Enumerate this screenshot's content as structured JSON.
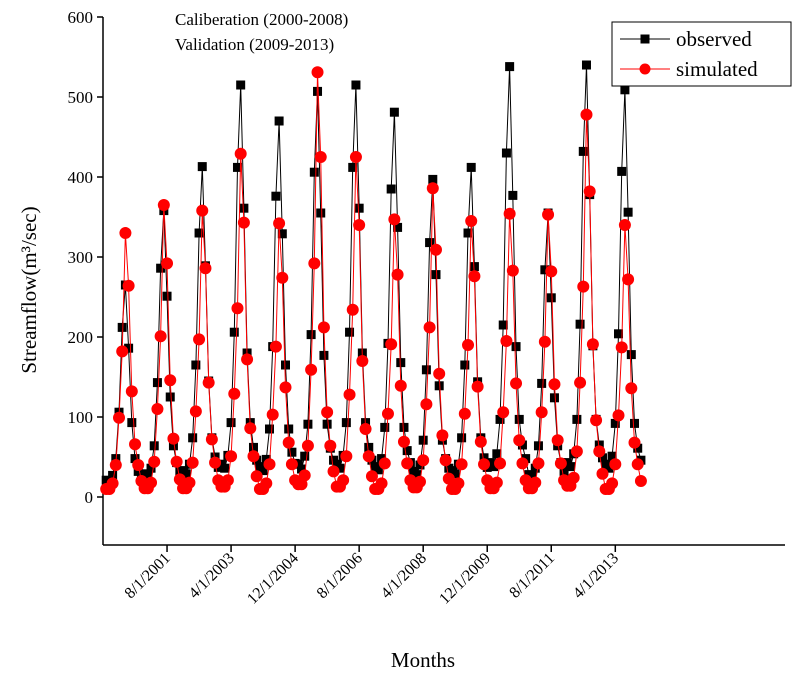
{
  "chart_data": {
    "type": "line",
    "annotations": [
      "Caliberation (2000-2008)",
      "Validation (2009-2013)"
    ],
    "xlabel": "Months",
    "ylabel": "Streamflow(m³/sec)",
    "x": [
      "1/1/2000",
      "2/1/2000",
      "3/1/2000",
      "4/1/2000",
      "5/1/2000",
      "6/1/2000",
      "7/1/2000",
      "8/1/2000",
      "9/1/2000",
      "10/1/2000",
      "11/1/2000",
      "12/1/2000",
      "1/1/2001",
      "2/1/2001",
      "3/1/2001",
      "4/1/2001",
      "5/1/2001",
      "6/1/2001",
      "7/1/2001",
      "8/1/2001",
      "9/1/2001",
      "10/1/2001",
      "11/1/2001",
      "12/1/2001",
      "1/1/2002",
      "2/1/2002",
      "3/1/2002",
      "4/1/2002",
      "5/1/2002",
      "6/1/2002",
      "7/1/2002",
      "8/1/2002",
      "9/1/2002",
      "10/1/2002",
      "11/1/2002",
      "12/1/2002",
      "1/1/2003",
      "2/1/2003",
      "3/1/2003",
      "4/1/2003",
      "5/1/2003",
      "6/1/2003",
      "7/1/2003",
      "8/1/2003",
      "9/1/2003",
      "10/1/2003",
      "11/1/2003",
      "12/1/2003",
      "1/1/2004",
      "2/1/2004",
      "3/1/2004",
      "4/1/2004",
      "5/1/2004",
      "6/1/2004",
      "7/1/2004",
      "8/1/2004",
      "9/1/2004",
      "10/1/2004",
      "11/1/2004",
      "12/1/2004",
      "1/1/2005",
      "2/1/2005",
      "3/1/2005",
      "4/1/2005",
      "5/1/2005",
      "6/1/2005",
      "7/1/2005",
      "8/1/2005",
      "9/1/2005",
      "10/1/2005",
      "11/1/2005",
      "12/1/2005",
      "1/1/2006",
      "2/1/2006",
      "3/1/2006",
      "4/1/2006",
      "5/1/2006",
      "6/1/2006",
      "7/1/2006",
      "8/1/2006",
      "9/1/2006",
      "10/1/2006",
      "11/1/2006",
      "12/1/2006",
      "1/1/2007",
      "2/1/2007",
      "3/1/2007",
      "4/1/2007",
      "5/1/2007",
      "6/1/2007",
      "7/1/2007",
      "8/1/2007",
      "9/1/2007",
      "10/1/2007",
      "11/1/2007",
      "12/1/2007",
      "1/1/2008",
      "2/1/2008",
      "3/1/2008",
      "4/1/2008",
      "5/1/2008",
      "6/1/2008",
      "7/1/2008",
      "8/1/2008",
      "9/1/2008",
      "10/1/2008",
      "11/1/2008",
      "12/1/2008",
      "1/1/2009",
      "2/1/2009",
      "3/1/2009",
      "4/1/2009",
      "5/1/2009",
      "6/1/2009",
      "7/1/2009",
      "8/1/2009",
      "9/1/2009",
      "10/1/2009",
      "11/1/2009",
      "12/1/2009",
      "1/1/2010",
      "2/1/2010",
      "3/1/2010",
      "4/1/2010",
      "5/1/2010",
      "6/1/2010",
      "7/1/2010",
      "8/1/2010",
      "9/1/2010",
      "10/1/2010",
      "11/1/2010",
      "12/1/2010",
      "1/1/2011",
      "2/1/2011",
      "3/1/2011",
      "4/1/2011",
      "5/1/2011",
      "6/1/2011",
      "7/1/2011",
      "8/1/2011",
      "9/1/2011",
      "10/1/2011",
      "11/1/2011",
      "12/1/2011",
      "1/1/2012",
      "2/1/2012",
      "3/1/2012",
      "4/1/2012",
      "5/1/2012",
      "6/1/2012",
      "7/1/2012",
      "8/1/2012",
      "9/1/2012",
      "10/1/2012",
      "11/1/2012",
      "12/1/2012",
      "1/1/2013",
      "2/1/2013",
      "3/1/2013",
      "4/1/2013",
      "5/1/2013",
      "6/1/2013",
      "7/1/2013",
      "8/1/2013",
      "9/1/2013",
      "10/1/2013",
      "11/1/2013",
      "12/1/2013"
    ],
    "series": [
      {
        "name": "observed",
        "color": "#000000",
        "marker": "square",
        "values": [
          21,
          19,
          27,
          48,
          106,
          212,
          265,
          186,
          93,
          48,
          32,
          24,
          29,
          25,
          36,
          64,
          143,
          286,
          358,
          251,
          125,
          64,
          43,
          32,
          33,
          29,
          41,
          74,
          165,
          330,
          413,
          289,
          145,
          74,
          50,
          37,
          41,
          36,
          52,
          93,
          206,
          412,
          515,
          361,
          180,
          93,
          62,
          46,
          38,
          33,
          47,
          85,
          188,
          376,
          470,
          329,
          165,
          85,
          56,
          42,
          41,
          35,
          51,
          91,
          203,
          406,
          507,
          355,
          177,
          91,
          61,
          46,
          41,
          36,
          52,
          93,
          206,
          412,
          515,
          361,
          180,
          93,
          62,
          46,
          38,
          34,
          48,
          87,
          192,
          385,
          481,
          337,
          168,
          87,
          58,
          43,
          32,
          28,
          40,
          71,
          159,
          318,
          397,
          278,
          139,
          71,
          48,
          36,
          33,
          29,
          41,
          74,
          165,
          330,
          412,
          288,
          144,
          74,
          49,
          37,
          43,
          38,
          54,
          97,
          215,
          430,
          538,
          377,
          188,
          97,
          65,
          48,
          28,
          25,
          36,
          64,
          142,
          284,
          355,
          249,
          124,
          64,
          43,
          32,
          43,
          38,
          54,
          97,
          216,
          432,
          540,
          378,
          189,
          97,
          65,
          49,
          41,
          36,
          51,
          92,
          204,
          407,
          509,
          356,
          178,
          92,
          61,
          46
        ]
      },
      {
        "name": "simulated",
        "color": "#ff0000",
        "marker": "circle",
        "values": [
          10,
          10,
          17,
          40,
          99,
          182,
          330,
          264,
          132,
          66,
          40,
          20,
          11,
          11,
          18,
          44,
          110,
          201,
          365,
          292,
          146,
          73,
          44,
          22,
          11,
          11,
          18,
          43,
          107,
          197,
          358,
          286,
          143,
          72,
          43,
          21,
          13,
          13,
          21,
          51,
          129,
          236,
          429,
          343,
          172,
          86,
          51,
          26,
          10,
          10,
          17,
          41,
          103,
          188,
          342,
          274,
          137,
          68,
          41,
          21,
          16,
          16,
          27,
          64,
          159,
          292,
          531,
          425,
          212,
          106,
          64,
          32,
          13,
          13,
          21,
          51,
          128,
          234,
          425,
          340,
          170,
          85,
          51,
          26,
          10,
          10,
          17,
          42,
          104,
          191,
          347,
          278,
          139,
          69,
          42,
          21,
          12,
          12,
          19,
          46,
          116,
          212,
          386,
          309,
          154,
          77,
          46,
          23,
          10,
          10,
          17,
          41,
          104,
          190,
          345,
          276,
          138,
          69,
          41,
          21,
          11,
          11,
          18,
          42,
          106,
          195,
          354,
          283,
          142,
          71,
          42,
          21,
          11,
          11,
          18,
          42,
          106,
          194,
          353,
          282,
          141,
          71,
          42,
          21,
          14,
          14,
          24,
          57,
          143,
          263,
          478,
          382,
          191,
          96,
          57,
          29,
          10,
          10,
          17,
          41,
          102,
          187,
          340,
          272,
          136,
          68,
          41,
          20
        ]
      }
    ],
    "xlim": [
      "12/1/1999",
      "9/1/2017"
    ],
    "xticks": [
      "8/1/2001",
      "4/1/2003",
      "12/1/2004",
      "8/1/2006",
      "4/1/2008",
      "12/1/2009",
      "8/1/2011",
      "4/1/2013"
    ],
    "ylim": [
      -60,
      600
    ],
    "yticks": [
      0,
      100,
      200,
      300,
      400,
      500,
      600
    ],
    "legend": "upper right"
  }
}
